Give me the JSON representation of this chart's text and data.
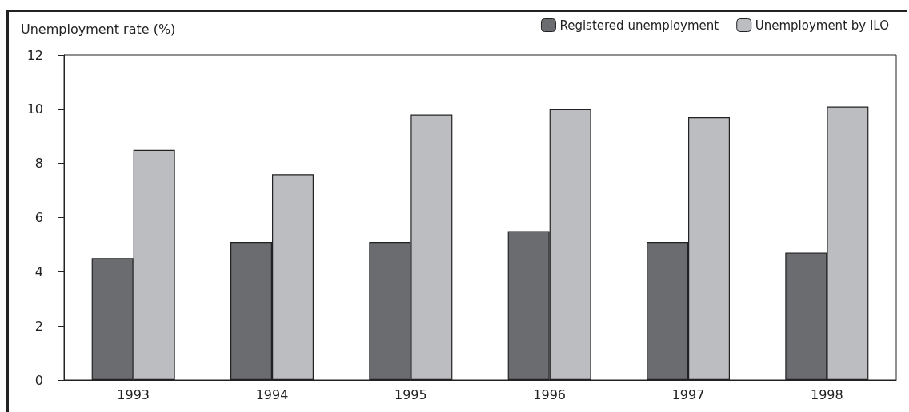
{
  "chart_data": {
    "type": "bar",
    "ylabel": "Unemployment rate (%)",
    "categories": [
      "1993",
      "1994",
      "1995",
      "1996",
      "1997",
      "1998"
    ],
    "series": [
      {
        "name": "Registered unemployment",
        "color": "#6b6c70",
        "values": [
          4.5,
          5.1,
          5.1,
          5.5,
          5.1,
          4.7
        ]
      },
      {
        "name": "Unemployment by ILO",
        "color": "#bcbdc1",
        "values": [
          8.5,
          7.6,
          9.8,
          10.0,
          9.7,
          10.1
        ]
      }
    ],
    "ylim": [
      0,
      12
    ],
    "yticks": [
      0,
      2,
      4,
      6,
      8,
      10,
      12
    ],
    "grid": false,
    "legend": "top right"
  }
}
